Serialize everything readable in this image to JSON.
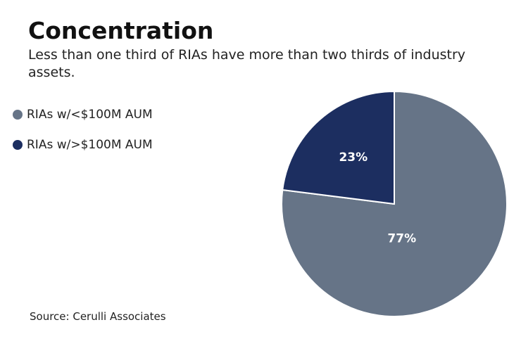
{
  "chart_data": {
    "type": "pie",
    "title": "Concentration",
    "subtitle": "Less than one third of RIAs have more than two thirds of industry assets.",
    "slices": [
      {
        "name": "RIAs w/<$100M AUM",
        "value": 77,
        "label": "77%",
        "color": "#667487"
      },
      {
        "name": "RIAs w/>$100M AUM",
        "value": 23,
        "label": "23%",
        "color": "#1c2e60"
      }
    ],
    "legend_position": "left",
    "source": "Source: Cerulli Associates"
  }
}
